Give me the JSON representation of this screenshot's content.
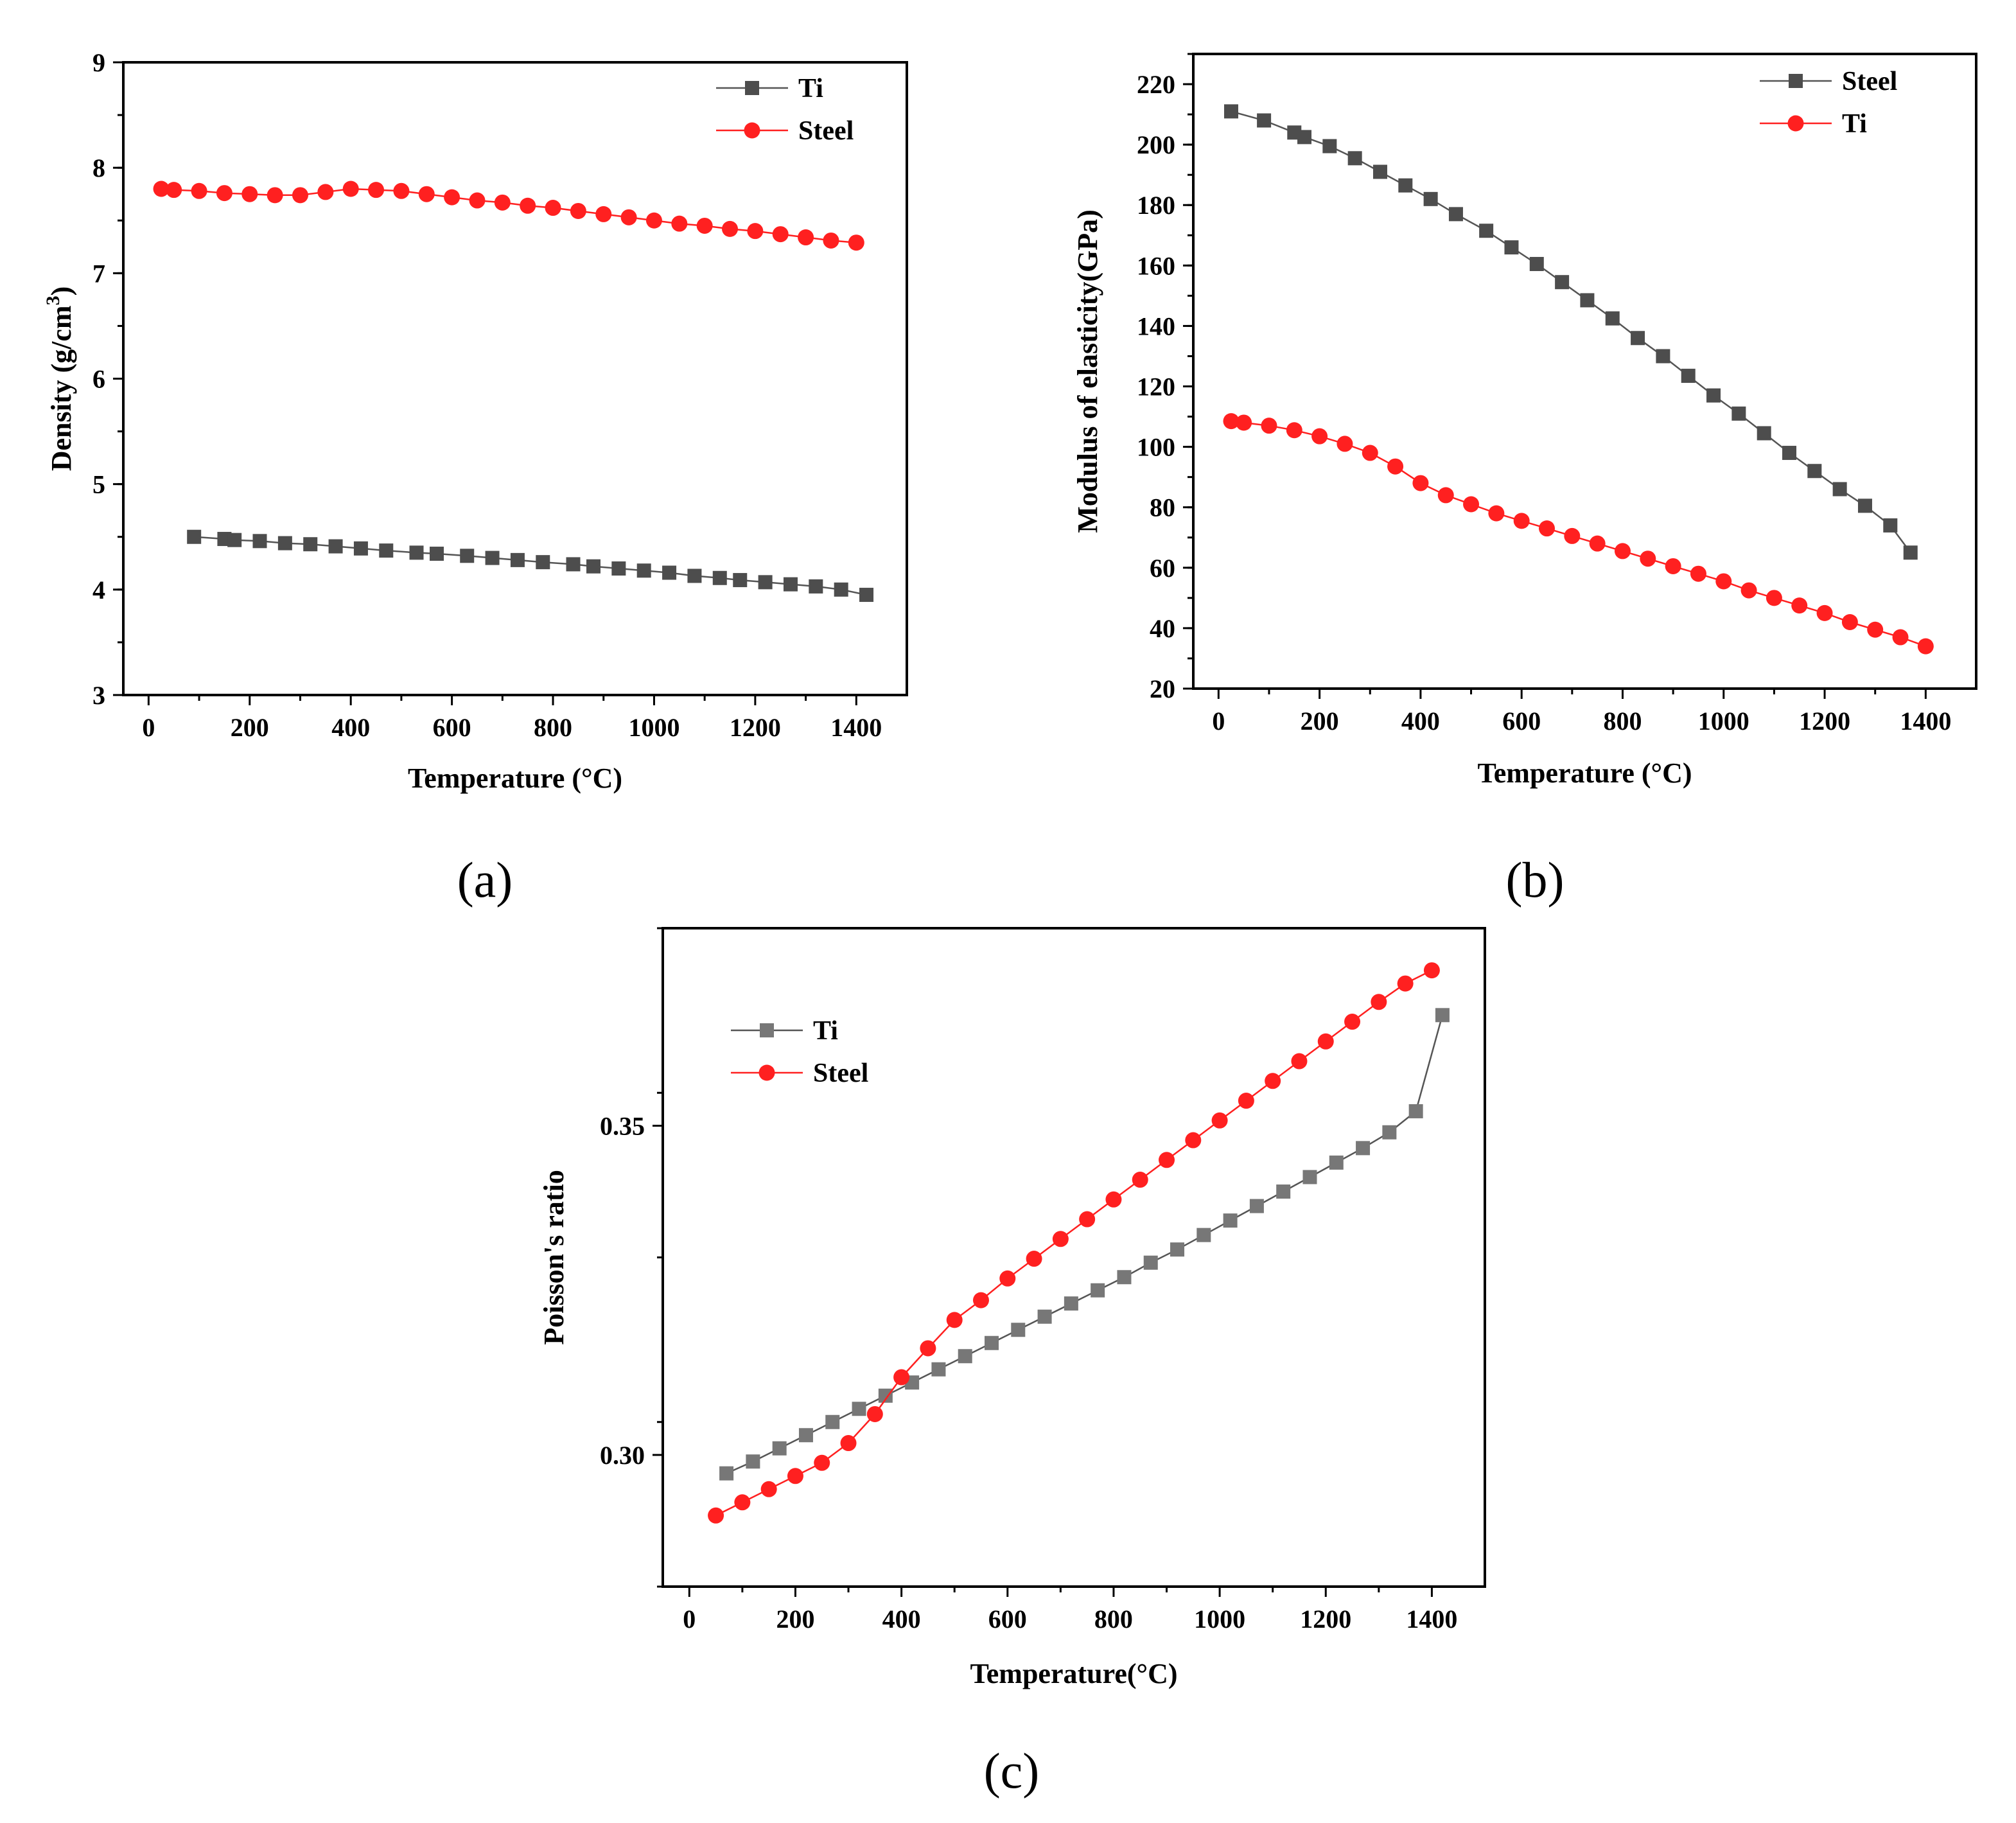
{
  "panels": {
    "a": {
      "caption": "(a)"
    },
    "b": {
      "caption": "(b)"
    },
    "c": {
      "caption": "(c)"
    }
  },
  "colors": {
    "ti": "#4d4d4d",
    "steel": "#ff2020",
    "ti_c": "#777777",
    "line_gray": "#555555"
  },
  "chart_data": [
    {
      "id": "a",
      "type": "line",
      "title": "",
      "xlabel": "Temperature (°C)",
      "ylabel": "Density (g/cm3)",
      "ylabel_main": "Density (g/cm",
      "ylabel_sup": "3",
      "ylabel_end": ")",
      "xlim": [
        -50,
        1500
      ],
      "ylim": [
        3,
        9
      ],
      "xticks": [
        0,
        200,
        400,
        600,
        800,
        1000,
        1200,
        1400
      ],
      "xtick_labels": [
        "0",
        "200",
        "400",
        "600",
        "800",
        "1000",
        "1200",
        "1400"
      ],
      "yticks": [
        3,
        4,
        5,
        6,
        7,
        8,
        9
      ],
      "ytick_labels": [
        "3",
        "4",
        "5",
        "6",
        "7",
        "8",
        "9"
      ],
      "legend": [
        "Ti",
        "Steel"
      ],
      "legend_position": "top-right",
      "series": [
        {
          "name": "Ti",
          "marker": "square",
          "color_key": "ti",
          "x": [
            90,
            150,
            170,
            220,
            270,
            320,
            370,
            420,
            470,
            530,
            570,
            630,
            680,
            730,
            780,
            840,
            880,
            930,
            980,
            1030,
            1080,
            1130,
            1170,
            1220,
            1270,
            1320,
            1370,
            1420
          ],
          "y": [
            4.5,
            4.48,
            4.47,
            4.46,
            4.44,
            4.43,
            4.41,
            4.39,
            4.37,
            4.35,
            4.34,
            4.32,
            4.3,
            4.28,
            4.26,
            4.24,
            4.22,
            4.2,
            4.18,
            4.16,
            4.13,
            4.11,
            4.09,
            4.07,
            4.05,
            4.03,
            4.0,
            3.95
          ]
        },
        {
          "name": "Steel",
          "marker": "circle",
          "color_key": "steel",
          "x": [
            25,
            50,
            100,
            150,
            200,
            250,
            300,
            350,
            400,
            450,
            500,
            550,
            600,
            650,
            700,
            750,
            800,
            850,
            900,
            950,
            1000,
            1050,
            1100,
            1150,
            1200,
            1250,
            1300,
            1350,
            1400
          ],
          "y": [
            7.8,
            7.79,
            7.78,
            7.76,
            7.75,
            7.74,
            7.74,
            7.77,
            7.8,
            7.79,
            7.78,
            7.75,
            7.72,
            7.69,
            7.67,
            7.64,
            7.62,
            7.59,
            7.56,
            7.53,
            7.5,
            7.47,
            7.45,
            7.42,
            7.4,
            7.37,
            7.34,
            7.31,
            7.29
          ]
        }
      ]
    },
    {
      "id": "b",
      "type": "line",
      "title": "",
      "xlabel": "Temperature (°C)",
      "ylabel": "Modulus of elasticity(GPa)",
      "xlim": [
        -50,
        1500
      ],
      "ylim": [
        20,
        230
      ],
      "xticks": [
        0,
        200,
        400,
        600,
        800,
        1000,
        1200,
        1400
      ],
      "xtick_labels": [
        "0",
        "200",
        "400",
        "600",
        "800",
        "1000",
        "1200",
        "1400"
      ],
      "yticks": [
        20,
        40,
        60,
        80,
        100,
        120,
        140,
        160,
        180,
        200,
        220
      ],
      "ytick_labels": [
        "20",
        "40",
        "60",
        "80",
        "100",
        "120",
        "140",
        "160",
        "180",
        "200",
        "220"
      ],
      "legend": [
        "Steel",
        "Ti"
      ],
      "legend_position": "top-right",
      "series": [
        {
          "name": "Steel",
          "marker": "square",
          "color_key": "ti",
          "x": [
            25,
            90,
            150,
            170,
            220,
            270,
            320,
            370,
            420,
            470,
            530,
            580,
            630,
            680,
            730,
            780,
            830,
            880,
            930,
            980,
            1030,
            1080,
            1130,
            1180,
            1230,
            1280,
            1330,
            1370
          ],
          "y": [
            211,
            208,
            204,
            202.5,
            199.5,
            195.5,
            191,
            186.5,
            182,
            177,
            171.5,
            166,
            160.5,
            154.5,
            148.5,
            142.5,
            136,
            130,
            123.5,
            117,
            111,
            104.5,
            98,
            92,
            86,
            80.5,
            74,
            65
          ]
        },
        {
          "name": "Ti",
          "marker": "circle",
          "color_key": "steel",
          "x": [
            25,
            50,
            100,
            150,
            200,
            250,
            300,
            350,
            400,
            450,
            500,
            550,
            600,
            650,
            700,
            750,
            800,
            850,
            900,
            950,
            1000,
            1050,
            1100,
            1150,
            1200,
            1250,
            1300,
            1350,
            1400
          ],
          "y": [
            108.5,
            108,
            107,
            105.5,
            103.5,
            101,
            98,
            93.5,
            88,
            84,
            81,
            78,
            75.5,
            73,
            70.5,
            68,
            65.5,
            63,
            60.5,
            58,
            55.5,
            52.5,
            50,
            47.5,
            45,
            42,
            39.5,
            37,
            34
          ]
        }
      ]
    },
    {
      "id": "c",
      "type": "line",
      "title": "",
      "xlabel": "Temperature(°C)",
      "ylabel": "Poisson's ratio",
      "xlim": [
        -50,
        1500
      ],
      "ylim": [
        0.28,
        0.38
      ],
      "xticks": [
        0,
        200,
        400,
        600,
        800,
        1000,
        1200,
        1400
      ],
      "xtick_labels": [
        "0",
        "200",
        "400",
        "600",
        "800",
        "1000",
        "1200",
        "1400"
      ],
      "yticks": [
        0.3,
        0.35
      ],
      "ytick_labels": [
        "0.30",
        "0.35"
      ],
      "legend": [
        "Ti",
        "Steel"
      ],
      "legend_position": "top-left",
      "series": [
        {
          "name": "Ti",
          "marker": "square",
          "color_key": "ti_c",
          "x": [
            70,
            120,
            170,
            220,
            270,
            320,
            370,
            420,
            470,
            520,
            570,
            620,
            670,
            720,
            770,
            820,
            870,
            920,
            970,
            1020,
            1070,
            1120,
            1170,
            1220,
            1270,
            1320,
            1370,
            1420
          ],
          "y": [
            0.2972,
            0.299,
            0.301,
            0.303,
            0.305,
            0.307,
            0.309,
            0.311,
            0.313,
            0.315,
            0.317,
            0.319,
            0.321,
            0.323,
            0.325,
            0.327,
            0.3292,
            0.3312,
            0.3334,
            0.3356,
            0.3378,
            0.34,
            0.3422,
            0.3444,
            0.3466,
            0.349,
            0.3522,
            0.3668
          ]
        },
        {
          "name": "Steel",
          "marker": "circle",
          "color_key": "steel",
          "x": [
            50,
            100,
            150,
            200,
            250,
            300,
            350,
            400,
            450,
            500,
            550,
            600,
            650,
            700,
            750,
            800,
            850,
            900,
            950,
            1000,
            1050,
            1100,
            1150,
            1200,
            1250,
            1300,
            1350,
            1400
          ],
          "y": [
            0.2908,
            0.2928,
            0.2948,
            0.2968,
            0.2988,
            0.3018,
            0.3062,
            0.3118,
            0.3162,
            0.3205,
            0.3235,
            0.3268,
            0.3298,
            0.3328,
            0.3358,
            0.3388,
            0.3418,
            0.3448,
            0.3478,
            0.3508,
            0.3538,
            0.3568,
            0.3598,
            0.3628,
            0.3658,
            0.3688,
            0.3716,
            0.3736
          ]
        }
      ]
    }
  ]
}
